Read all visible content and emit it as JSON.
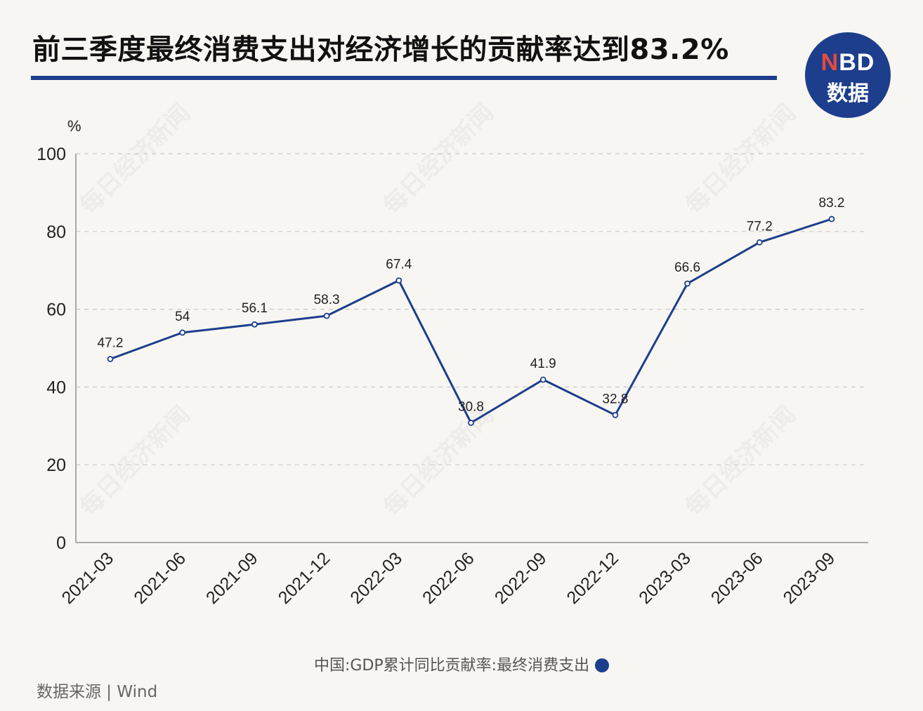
{
  "header": {
    "title": "前三季度最终消费支出对经济增长的贡献率达到83.2%"
  },
  "logo": {
    "nbd_n": "N",
    "nbd_rest": "BD",
    "cn": "数据"
  },
  "watermark_text": "每日经济新闻",
  "source": "数据来源 | Wind",
  "colors": {
    "line": "#1d3e8c",
    "accent": "#1d3e8c",
    "logo_n": "#e84a3c"
  },
  "chart_data": {
    "type": "line",
    "title": "前三季度最终消费支出对经济增长的贡献率达到83.2%",
    "ylabel": "%",
    "xlabel": "",
    "ylim": [
      0,
      100
    ],
    "yticks": [
      0,
      20,
      40,
      60,
      80,
      100
    ],
    "grid": true,
    "legend_position": "bottom",
    "categories": [
      "2021-03",
      "2021-06",
      "2021-09",
      "2021-12",
      "2022-03",
      "2022-06",
      "2022-09",
      "2022-12",
      "2023-03",
      "2023-06",
      "2023-09"
    ],
    "series": [
      {
        "name": "中国:GDP累计同比贡献率:最终消费支出",
        "values": [
          47.2,
          54,
          56.1,
          58.3,
          67.4,
          30.8,
          41.9,
          32.8,
          66.6,
          77.2,
          83.2
        ],
        "labels": [
          "47.2",
          "54",
          "56.1",
          "58.3",
          "67.4",
          "30.8",
          "41.9",
          "32.8",
          "66.6",
          "77.2",
          "83.2"
        ]
      }
    ]
  }
}
